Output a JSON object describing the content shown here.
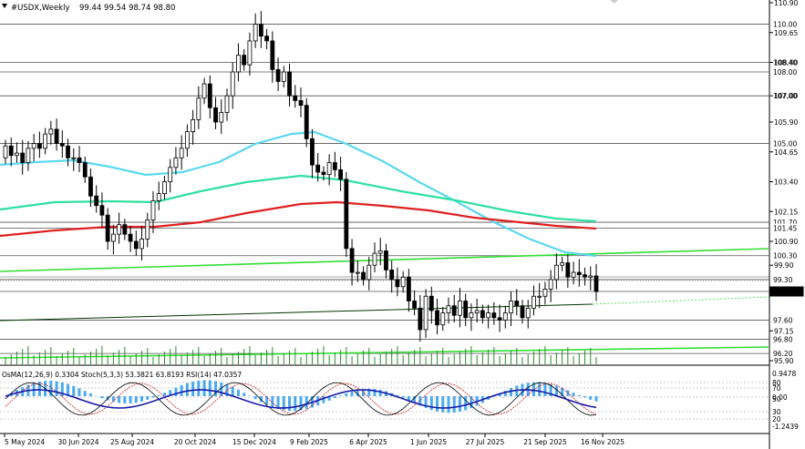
{
  "header": {
    "symbol": "#USDX,Weekly",
    "ohlc": "99.44 99.54 98.74 98.80"
  },
  "price_scale": [
    "110.90",
    "109.65",
    "108.40",
    "107.00",
    "105.90",
    "104.65",
    "103.40",
    "102.15",
    "100.90",
    "99.90",
    "98.80",
    "97.15",
    "95.90"
  ],
  "level_labels": [
    {
      "text": "110.00",
      "price": 110.0
    },
    {
      "text": "108.40",
      "price": 108.4
    },
    {
      "text": "108.00",
      "price": 108.0
    },
    {
      "text": "107.00",
      "price": 107.0
    },
    {
      "text": "105.00",
      "price": 105.0
    },
    {
      "text": "101.70",
      "price": 101.7
    },
    {
      "text": "101.45",
      "price": 101.45
    },
    {
      "text": "100.30",
      "price": 100.3
    },
    {
      "text": "99.30",
      "price": 99.3
    },
    {
      "text": "98.80",
      "price": 98.8
    },
    {
      "text": "97.60",
      "price": 97.6
    },
    {
      "text": "96.80",
      "price": 96.8
    },
    {
      "text": "96.20",
      "price": 96.2
    }
  ],
  "time_axis": [
    "5 May 2024",
    "30 Jun 2024",
    "25 Aug 2024",
    "20 Oct 2024",
    "15 Dec 2024",
    "9 Feb 2025",
    "6 Apr 2025",
    "1 Jun 2025",
    "27 Jul 2025",
    "21 Sep 2025",
    "16 Nov 2025"
  ],
  "indicator_window": {
    "label": "OsMA(12,26,9) 0.3304  Stoch(5,3,3) 53.3821 63.8193  RSI(14) 47.0357",
    "scale": [
      "0.9478",
      "0.00",
      "-1.2439"
    ],
    "levels": [
      "80",
      "70",
      "50",
      "30",
      "20"
    ]
  },
  "colors": {
    "candle": "#000000",
    "ema_fast": "#5ad8f0",
    "ema_mid": "#2fe0a0",
    "ema_slow": "#e02020",
    "trend_green": "#33dd33",
    "grid_level": "#555555",
    "osma_hist": "#4aaaf0",
    "rsi_line": "#1a1aa8",
    "stoch_main": "#000000",
    "stoch_signal": "#cc2222"
  }
}
